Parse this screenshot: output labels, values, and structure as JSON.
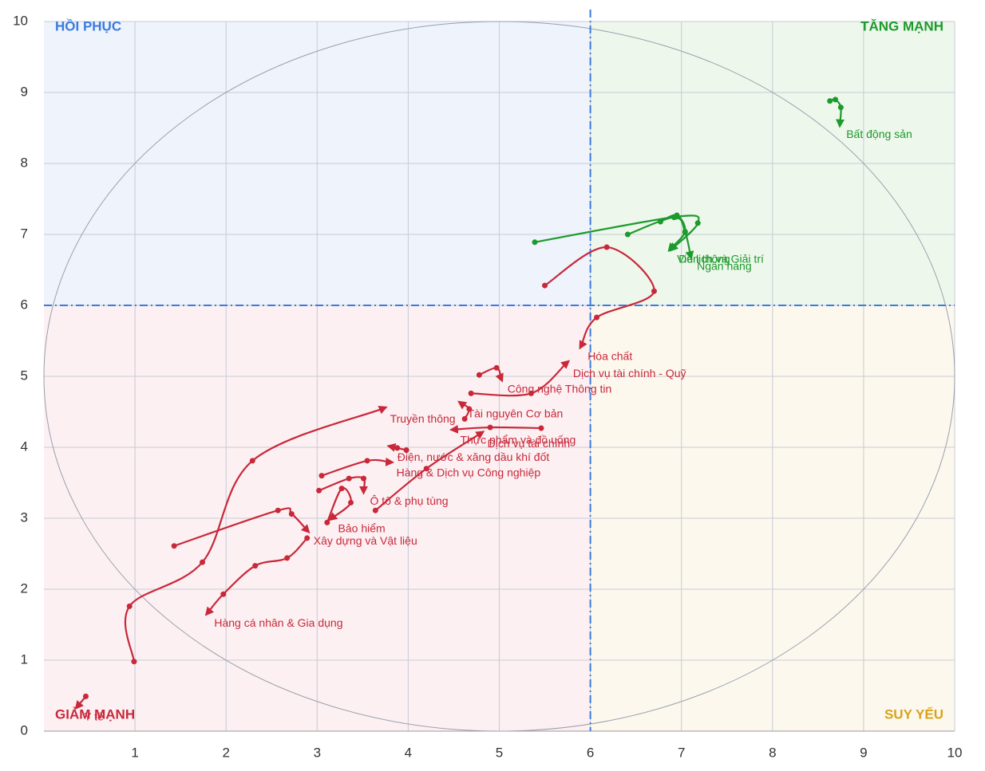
{
  "chart_data": {
    "type": "rotation",
    "xlim": [
      0,
      10
    ],
    "ylim": [
      0,
      10
    ],
    "xticks": [
      1,
      2,
      3,
      4,
      5,
      6,
      7,
      8,
      9,
      10
    ],
    "yticks": [
      0,
      1,
      2,
      3,
      4,
      5,
      6,
      7,
      8,
      9,
      10
    ],
    "grid": true,
    "reference_lines": {
      "x": 6,
      "y": 6
    },
    "quadrants": {
      "top_left": "HỒI PHỤC",
      "top_right": "TĂNG MẠNH",
      "bottom_left": "GIẢM MẠNH",
      "bottom_right": "SUY YẾU"
    },
    "quadrant_colors": {
      "top_left": "#3b7be0",
      "top_right": "#1c9a2c",
      "bottom_left": "#c8283a",
      "bottom_right": "#d9a21b"
    },
    "series": [
      {
        "name": "Bất động sản",
        "color": "#1c9a2c",
        "x": [
          8.63,
          8.69,
          8.75,
          8.74
        ],
        "y": [
          8.88,
          8.9,
          8.79,
          8.56
        ]
      },
      {
        "name": "Du lịch và Giải trí",
        "color": "#1c9a2c",
        "x": [
          5.39,
          6.95,
          7.18,
          6.9
        ],
        "y": [
          6.89,
          7.25,
          7.16,
          6.8
        ]
      },
      {
        "name": "Ngân hàng",
        "color": "#1c9a2c",
        "x": [
          6.41,
          6.92,
          7.04,
          7.1
        ],
        "y": [
          7.0,
          7.24,
          7.03,
          6.7
        ]
      },
      {
        "name": "Viễn thông",
        "color": "#1c9a2c",
        "x": [
          6.77,
          6.95,
          7.04,
          6.88
        ],
        "y": [
          7.18,
          7.27,
          7.04,
          6.8
        ]
      },
      {
        "name": "Hóa chất",
        "color": "#c8283a",
        "x": [
          5.5,
          6.18,
          6.7,
          6.07,
          5.9
        ],
        "y": [
          6.28,
          6.82,
          6.2,
          5.83,
          5.43
        ]
      },
      {
        "name": "Dịch vụ tài chính - Quỹ",
        "color": "#c8283a",
        "x": [
          4.69,
          5.35,
          5.74
        ],
        "y": [
          4.76,
          4.76,
          5.19
        ]
      },
      {
        "name": "Công nghệ Thông tin",
        "color": "#c8283a",
        "x": [
          4.78,
          4.97,
          5.02
        ],
        "y": [
          5.02,
          5.12,
          4.97
        ]
      },
      {
        "name": "Tài nguyên Cơ bản",
        "color": "#c8283a",
        "x": [
          4.62,
          4.67,
          4.58
        ],
        "y": [
          4.4,
          4.54,
          4.62
        ]
      },
      {
        "name": "Thực phẩm và đồ uống",
        "color": "#c8283a",
        "x": [
          5.46,
          4.9,
          4.5
        ],
        "y": [
          4.27,
          4.28,
          4.25
        ]
      },
      {
        "name": "Điện, nước & xăng dầu khí đốt",
        "color": "#c8283a",
        "x": [
          3.98,
          3.88,
          3.81
        ],
        "y": [
          3.96,
          3.99,
          4.01
        ]
      },
      {
        "name": "Hàng & Dịch vụ Công nghiệp",
        "color": "#c8283a",
        "x": [
          3.05,
          3.55,
          3.8
        ],
        "y": [
          3.6,
          3.81,
          3.79
        ]
      },
      {
        "name": "Dịch vụ tài chính",
        "color": "#c8283a",
        "x": [
          3.64,
          4.2,
          4.8
        ],
        "y": [
          3.11,
          3.7,
          4.2
        ]
      },
      {
        "name": "Ô tô & phụ tùng",
        "color": "#c8283a",
        "x": [
          3.02,
          3.35,
          3.51,
          3.51
        ],
        "y": [
          3.39,
          3.56,
          3.56,
          3.39
        ]
      },
      {
        "name": "Bảo hiểm",
        "color": "#c8283a",
        "x": [
          3.11,
          3.27,
          3.37,
          3.16
        ],
        "y": [
          2.94,
          3.42,
          3.22,
          3.0
        ]
      },
      {
        "name": "Xây dựng và Vật liệu",
        "color": "#c8283a",
        "x": [
          1.43,
          2.57,
          2.72,
          2.89
        ],
        "y": [
          2.61,
          3.11,
          3.06,
          2.83
        ]
      },
      {
        "name": "Hàng cá nhân & Gia dụng",
        "color": "#c8283a",
        "x": [
          2.89,
          2.67,
          2.32,
          1.97,
          1.8
        ],
        "y": [
          2.72,
          2.44,
          2.33,
          1.93,
          1.67
        ]
      },
      {
        "name": "Truyền thông",
        "color": "#c8283a",
        "x": [
          0.99,
          0.94,
          1.74,
          2.29,
          3.73
        ],
        "y": [
          0.98,
          1.76,
          2.38,
          3.81,
          4.55
        ]
      },
      {
        "name": "Y tế",
        "color": "#c8283a",
        "x": [
          0.46,
          0.37
        ],
        "y": [
          0.49,
          0.35
        ]
      }
    ]
  }
}
